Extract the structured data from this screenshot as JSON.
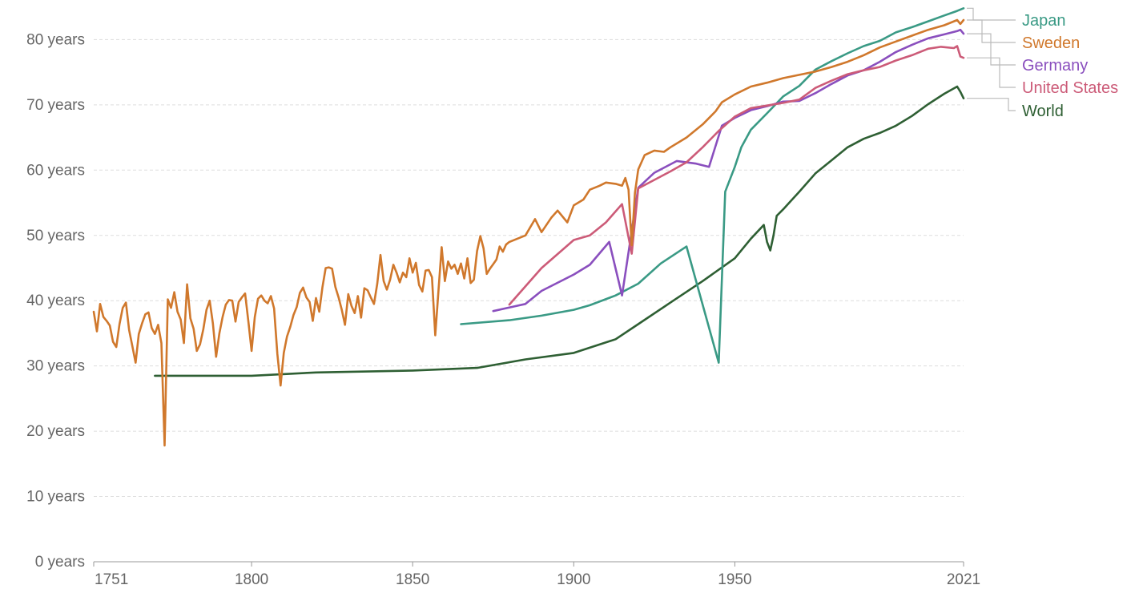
{
  "chart_data": {
    "type": "line",
    "title": "",
    "xlabel": "",
    "ylabel": "",
    "xlim": [
      1751,
      2021
    ],
    "ylim": [
      0,
      85
    ],
    "grid": true,
    "legend_placement": "right",
    "x_ticks": [
      {
        "value": 1751,
        "label": "1751"
      },
      {
        "value": 1800,
        "label": "1800"
      },
      {
        "value": 1850,
        "label": "1850"
      },
      {
        "value": 1900,
        "label": "1900"
      },
      {
        "value": 1950,
        "label": "1950"
      },
      {
        "value": 2021,
        "label": "2021"
      }
    ],
    "y_ticks": [
      {
        "value": 0,
        "label": "0 years"
      },
      {
        "value": 10,
        "label": "10 years"
      },
      {
        "value": 20,
        "label": "20 years"
      },
      {
        "value": 30,
        "label": "30 years"
      },
      {
        "value": 40,
        "label": "40 years"
      },
      {
        "value": 50,
        "label": "50 years"
      },
      {
        "value": 60,
        "label": "60 years"
      },
      {
        "value": 70,
        "label": "70 years"
      },
      {
        "value": 80,
        "label": "80 years"
      }
    ],
    "series": [
      {
        "name": "Japan",
        "color": "#3a9a85",
        "points": [
          [
            1865,
            36.4
          ],
          [
            1880,
            37.0
          ],
          [
            1890,
            37.7
          ],
          [
            1900,
            38.6
          ],
          [
            1905,
            39.3
          ],
          [
            1913,
            40.8
          ],
          [
            1920,
            42.6
          ],
          [
            1927,
            45.7
          ],
          [
            1935,
            48.3
          ],
          [
            1945,
            30.5
          ],
          [
            1947,
            56.7
          ],
          [
            1950,
            60.5
          ],
          [
            1952,
            63.5
          ],
          [
            1955,
            66.2
          ],
          [
            1960,
            68.7
          ],
          [
            1965,
            71.3
          ],
          [
            1970,
            72.9
          ],
          [
            1975,
            75.4
          ],
          [
            1980,
            76.7
          ],
          [
            1985,
            77.9
          ],
          [
            1990,
            79.0
          ],
          [
            1995,
            79.8
          ],
          [
            2000,
            81.1
          ],
          [
            2005,
            81.9
          ],
          [
            2010,
            82.8
          ],
          [
            2015,
            83.7
          ],
          [
            2019,
            84.4
          ],
          [
            2021,
            84.8
          ]
        ]
      },
      {
        "name": "Sweden",
        "color": "#d0782c",
        "points": [
          [
            1751,
            38.3
          ],
          [
            1752,
            35.3
          ],
          [
            1753,
            39.5
          ],
          [
            1754,
            37.5
          ],
          [
            1755,
            36.9
          ],
          [
            1756,
            36.2
          ],
          [
            1757,
            33.7
          ],
          [
            1758,
            32.9
          ],
          [
            1759,
            36.4
          ],
          [
            1760,
            38.9
          ],
          [
            1761,
            39.7
          ],
          [
            1762,
            35.5
          ],
          [
            1763,
            33.0
          ],
          [
            1764,
            30.5
          ],
          [
            1765,
            34.9
          ],
          [
            1766,
            36.5
          ],
          [
            1767,
            37.9
          ],
          [
            1768,
            38.2
          ],
          [
            1769,
            35.8
          ],
          [
            1770,
            34.9
          ],
          [
            1771,
            36.3
          ],
          [
            1772,
            33.5
          ],
          [
            1773,
            17.8
          ],
          [
            1774,
            40.2
          ],
          [
            1775,
            38.9
          ],
          [
            1776,
            41.3
          ],
          [
            1777,
            38.3
          ],
          [
            1778,
            37.1
          ],
          [
            1779,
            33.5
          ],
          [
            1780,
            42.5
          ],
          [
            1781,
            37.3
          ],
          [
            1782,
            35.7
          ],
          [
            1783,
            32.3
          ],
          [
            1784,
            33.3
          ],
          [
            1785,
            35.6
          ],
          [
            1786,
            38.6
          ],
          [
            1787,
            40.0
          ],
          [
            1788,
            36.5
          ],
          [
            1789,
            31.4
          ],
          [
            1790,
            35.0
          ],
          [
            1791,
            37.5
          ],
          [
            1792,
            39.4
          ],
          [
            1793,
            40.1
          ],
          [
            1794,
            40.0
          ],
          [
            1795,
            36.8
          ],
          [
            1796,
            39.8
          ],
          [
            1797,
            40.5
          ],
          [
            1798,
            41.1
          ],
          [
            1799,
            36.8
          ],
          [
            1800,
            32.3
          ],
          [
            1801,
            37.5
          ],
          [
            1802,
            40.3
          ],
          [
            1803,
            40.8
          ],
          [
            1804,
            40.0
          ],
          [
            1805,
            39.6
          ],
          [
            1806,
            40.7
          ],
          [
            1807,
            38.8
          ],
          [
            1808,
            31.8
          ],
          [
            1809,
            27.0
          ],
          [
            1810,
            32.0
          ],
          [
            1811,
            34.5
          ],
          [
            1812,
            36.0
          ],
          [
            1813,
            37.8
          ],
          [
            1814,
            39.0
          ],
          [
            1815,
            41.2
          ],
          [
            1816,
            42.0
          ],
          [
            1817,
            40.5
          ],
          [
            1818,
            39.8
          ],
          [
            1819,
            36.9
          ],
          [
            1820,
            40.4
          ],
          [
            1821,
            38.3
          ],
          [
            1822,
            42.1
          ],
          [
            1823,
            45.0
          ],
          [
            1824,
            45.1
          ],
          [
            1825,
            44.9
          ],
          [
            1826,
            42.1
          ],
          [
            1827,
            40.5
          ],
          [
            1828,
            38.6
          ],
          [
            1829,
            36.3
          ],
          [
            1830,
            41.0
          ],
          [
            1831,
            39.2
          ],
          [
            1832,
            38.1
          ],
          [
            1833,
            40.7
          ],
          [
            1834,
            37.4
          ],
          [
            1835,
            41.9
          ],
          [
            1836,
            41.6
          ],
          [
            1837,
            40.5
          ],
          [
            1838,
            39.5
          ],
          [
            1839,
            42.6
          ],
          [
            1840,
            47.0
          ],
          [
            1841,
            43.0
          ],
          [
            1842,
            41.7
          ],
          [
            1843,
            43.2
          ],
          [
            1844,
            45.5
          ],
          [
            1845,
            44.3
          ],
          [
            1846,
            42.8
          ],
          [
            1847,
            44.3
          ],
          [
            1848,
            43.6
          ],
          [
            1849,
            46.5
          ],
          [
            1850,
            44.3
          ],
          [
            1851,
            45.8
          ],
          [
            1852,
            42.4
          ],
          [
            1853,
            41.4
          ],
          [
            1854,
            44.6
          ],
          [
            1855,
            44.7
          ],
          [
            1856,
            43.6
          ],
          [
            1857,
            34.7
          ],
          [
            1858,
            41.5
          ],
          [
            1859,
            48.2
          ],
          [
            1860,
            43.0
          ],
          [
            1861,
            46.0
          ],
          [
            1862,
            44.9
          ],
          [
            1863,
            45.5
          ],
          [
            1864,
            44.1
          ],
          [
            1865,
            45.7
          ],
          [
            1866,
            43.4
          ],
          [
            1867,
            46.5
          ],
          [
            1868,
            42.7
          ],
          [
            1869,
            43.2
          ],
          [
            1870,
            47.6
          ],
          [
            1871,
            49.9
          ],
          [
            1872,
            48.0
          ],
          [
            1873,
            44.1
          ],
          [
            1874,
            44.9
          ],
          [
            1875,
            45.6
          ],
          [
            1876,
            46.3
          ],
          [
            1877,
            48.3
          ],
          [
            1878,
            47.5
          ],
          [
            1879,
            48.6
          ],
          [
            1880,
            49.0
          ],
          [
            1885,
            50.0
          ],
          [
            1888,
            52.5
          ],
          [
            1890,
            50.5
          ],
          [
            1893,
            52.7
          ],
          [
            1895,
            53.8
          ],
          [
            1898,
            52.0
          ],
          [
            1900,
            54.6
          ],
          [
            1903,
            55.5
          ],
          [
            1905,
            57.0
          ],
          [
            1908,
            57.6
          ],
          [
            1910,
            58.1
          ],
          [
            1913,
            57.9
          ],
          [
            1915,
            57.6
          ],
          [
            1916,
            58.8
          ],
          [
            1917,
            57.0
          ],
          [
            1918,
            48.5
          ],
          [
            1919,
            56.5
          ],
          [
            1920,
            60.1
          ],
          [
            1922,
            62.3
          ],
          [
            1925,
            63.0
          ],
          [
            1928,
            62.8
          ],
          [
            1930,
            63.5
          ],
          [
            1935,
            65.0
          ],
          [
            1940,
            67.0
          ],
          [
            1944,
            69.0
          ],
          [
            1946,
            70.4
          ],
          [
            1950,
            71.6
          ],
          [
            1955,
            72.8
          ],
          [
            1960,
            73.4
          ],
          [
            1965,
            74.1
          ],
          [
            1970,
            74.6
          ],
          [
            1975,
            75.1
          ],
          [
            1980,
            75.8
          ],
          [
            1985,
            76.6
          ],
          [
            1990,
            77.6
          ],
          [
            1995,
            78.8
          ],
          [
            2000,
            79.7
          ],
          [
            2005,
            80.6
          ],
          [
            2010,
            81.5
          ],
          [
            2015,
            82.2
          ],
          [
            2019,
            83.0
          ],
          [
            2020,
            82.4
          ],
          [
            2021,
            83.0
          ]
        ]
      },
      {
        "name": "Germany",
        "color": "#8a4fbe",
        "points": [
          [
            1875,
            38.4
          ],
          [
            1885,
            39.5
          ],
          [
            1890,
            41.5
          ],
          [
            1900,
            44.0
          ],
          [
            1905,
            45.5
          ],
          [
            1911,
            49.0
          ],
          [
            1915,
            40.8
          ],
          [
            1920,
            57.3
          ],
          [
            1925,
            59.6
          ],
          [
            1932,
            61.4
          ],
          [
            1938,
            61.0
          ],
          [
            1942,
            60.5
          ],
          [
            1946,
            66.8
          ],
          [
            1950,
            68.0
          ],
          [
            1955,
            69.2
          ],
          [
            1960,
            69.8
          ],
          [
            1965,
            70.5
          ],
          [
            1970,
            70.6
          ],
          [
            1975,
            71.8
          ],
          [
            1980,
            73.2
          ],
          [
            1985,
            74.5
          ],
          [
            1990,
            75.3
          ],
          [
            1995,
            76.6
          ],
          [
            2000,
            78.1
          ],
          [
            2005,
            79.2
          ],
          [
            2010,
            80.2
          ],
          [
            2015,
            80.8
          ],
          [
            2019,
            81.3
          ],
          [
            2020,
            81.5
          ],
          [
            2021,
            80.9
          ]
        ]
      },
      {
        "name": "United States",
        "color": "#cc5b78",
        "points": [
          [
            1880,
            39.4
          ],
          [
            1890,
            45.0
          ],
          [
            1900,
            49.3
          ],
          [
            1905,
            50.0
          ],
          [
            1910,
            52.0
          ],
          [
            1915,
            54.8
          ],
          [
            1918,
            47.2
          ],
          [
            1920,
            57.2
          ],
          [
            1925,
            58.5
          ],
          [
            1930,
            59.8
          ],
          [
            1935,
            61.2
          ],
          [
            1940,
            63.5
          ],
          [
            1945,
            66.0
          ],
          [
            1950,
            68.2
          ],
          [
            1955,
            69.5
          ],
          [
            1960,
            69.9
          ],
          [
            1965,
            70.3
          ],
          [
            1970,
            70.8
          ],
          [
            1975,
            72.6
          ],
          [
            1980,
            73.7
          ],
          [
            1985,
            74.7
          ],
          [
            1990,
            75.3
          ],
          [
            1995,
            75.8
          ],
          [
            2000,
            76.8
          ],
          [
            2005,
            77.6
          ],
          [
            2010,
            78.6
          ],
          [
            2014,
            78.9
          ],
          [
            2018,
            78.7
          ],
          [
            2019,
            79.0
          ],
          [
            2020,
            77.4
          ],
          [
            2021,
            77.2
          ]
        ]
      },
      {
        "name": "World",
        "color": "#2e5f33",
        "points": [
          [
            1770,
            28.5
          ],
          [
            1800,
            28.5
          ],
          [
            1820,
            29.0
          ],
          [
            1850,
            29.3
          ],
          [
            1870,
            29.7
          ],
          [
            1885,
            31.0
          ],
          [
            1900,
            32.0
          ],
          [
            1913,
            34.1
          ],
          [
            1920,
            36.4
          ],
          [
            1930,
            39.7
          ],
          [
            1940,
            43.0
          ],
          [
            1950,
            46.5
          ],
          [
            1955,
            49.5
          ],
          [
            1959,
            51.6
          ],
          [
            1960,
            49.0
          ],
          [
            1961,
            47.7
          ],
          [
            1962,
            50.0
          ],
          [
            1963,
            53.0
          ],
          [
            1965,
            54.0
          ],
          [
            1970,
            56.7
          ],
          [
            1975,
            59.5
          ],
          [
            1980,
            61.5
          ],
          [
            1985,
            63.5
          ],
          [
            1990,
            64.8
          ],
          [
            1995,
            65.7
          ],
          [
            2000,
            66.8
          ],
          [
            2005,
            68.3
          ],
          [
            2010,
            70.1
          ],
          [
            2015,
            71.7
          ],
          [
            2019,
            72.8
          ],
          [
            2020,
            72.0
          ],
          [
            2021,
            71.0
          ]
        ]
      }
    ]
  }
}
